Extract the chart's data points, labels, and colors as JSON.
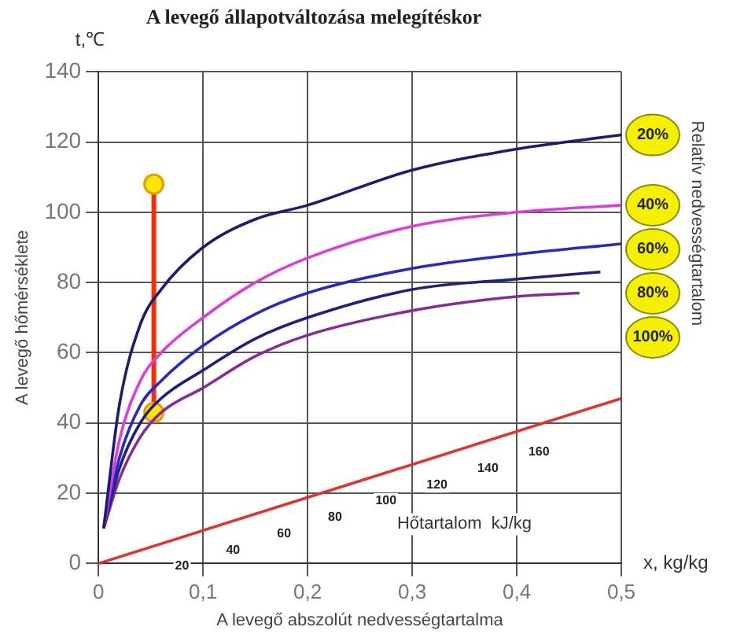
{
  "chart_data": {
    "type": "line",
    "title": "A levegő állapotváltozása melegítéskor",
    "xlabel": "A levegő abszolút nedvességtartalma",
    "ylabel": "A levegő hőmérséklete",
    "y2label": "Relatív nedvességtartalom",
    "xlim": [
      0,
      0.5
    ],
    "xticks": [
      0,
      {
        "value": 0.1,
        "label": "0,1"
      },
      {
        "value": 0.2,
        "label": "0,2"
      },
      {
        "value": 0.3,
        "label": "0,3"
      },
      {
        "value": 0.4,
        "label": "0,4"
      },
      {
        "value": 0.5,
        "label": "0,5"
      }
    ],
    "ylim": [
      0,
      140
    ],
    "yticks": [
      0,
      20,
      40,
      60,
      80,
      100,
      120,
      140
    ],
    "grid": true,
    "legend": false,
    "marker": "none",
    "line_style": "solid",
    "series": [
      {
        "name": "20%",
        "color": "#1c1c70",
        "x": [
          0.005,
          0.02,
          0.04,
          0.06,
          0.1,
          0.15,
          0.2,
          0.3,
          0.4,
          0.5
        ],
        "values": [
          10,
          45,
          68,
          78,
          90,
          98,
          102,
          112,
          118,
          122
        ]
      },
      {
        "name": "40%",
        "color": "#e03cdc",
        "x": [
          0.005,
          0.02,
          0.04,
          0.06,
          0.1,
          0.15,
          0.2,
          0.3,
          0.4,
          0.5
        ],
        "values": [
          10,
          35,
          52,
          60,
          70,
          80,
          87,
          96,
          100,
          102
        ]
      },
      {
        "name": "60%",
        "color": "#2828c8",
        "x": [
          0.005,
          0.02,
          0.04,
          0.06,
          0.1,
          0.15,
          0.2,
          0.3,
          0.4,
          0.5
        ],
        "values": [
          10,
          30,
          45,
          52,
          62,
          71,
          77,
          84,
          88,
          91
        ]
      },
      {
        "name": "80%",
        "color": "#202080",
        "x": [
          0.005,
          0.02,
          0.04,
          0.06,
          0.1,
          0.15,
          0.2,
          0.3,
          0.4,
          0.48
        ],
        "values": [
          10,
          27,
          40,
          47,
          55,
          64,
          70,
          78,
          81,
          83
        ]
      },
      {
        "name": "100%",
        "color": "#8a2a9a",
        "x": [
          0.005,
          0.02,
          0.04,
          0.06,
          0.1,
          0.15,
          0.2,
          0.3,
          0.4,
          0.46
        ],
        "values": [
          10,
          24,
          36,
          43,
          50,
          59,
          65,
          72,
          76,
          77
        ]
      },
      {
        "color": "#e83030",
        "x": [
          0,
          0.5
        ],
        "values": [
          0,
          47
        ]
      },
      {
        "color": "#ff2a00",
        "marker": "circle",
        "x": [
          0.053,
          0.053
        ],
        "values": [
          43,
          108
        ]
      }
    ],
    "annotations": [
      "t,℃",
      "x, kg/kg",
      "Hőtartalom  kJ/kg",
      "20",
      "40",
      "60",
      "80",
      "100",
      "120",
      "140",
      "160"
    ]
  }
}
